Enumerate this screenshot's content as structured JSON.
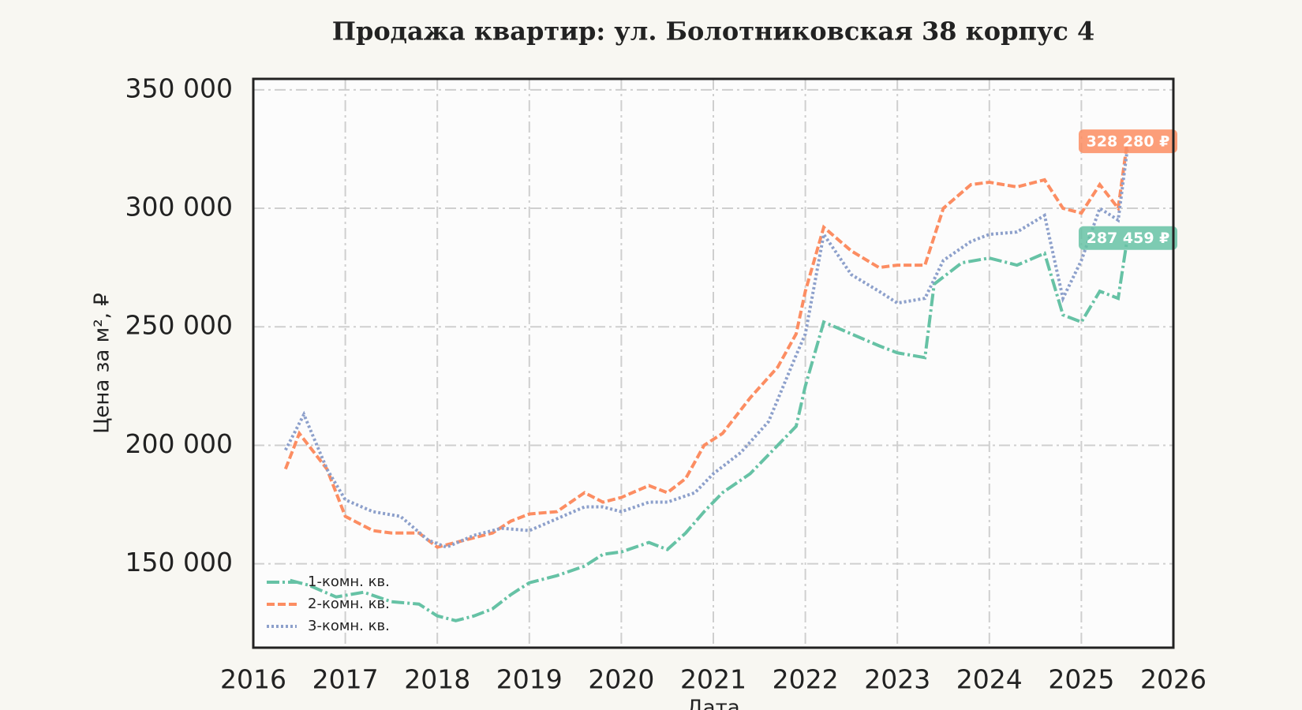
{
  "chart_data": {
    "type": "line",
    "title": "Продажа квартир: ул. Болотниковская 38 корпус 4",
    "x_label": "Дата",
    "y_label": "Цена за м², ₽",
    "xlim": [
      2016,
      2026
    ],
    "xticks": [
      2016,
      2017,
      2018,
      2019,
      2020,
      2021,
      2022,
      2023,
      2024,
      2025,
      2026
    ],
    "ylim": [
      114600,
      354600
    ],
    "yticks": [
      {
        "value": 150000,
        "label": "150 000"
      },
      {
        "value": 200000,
        "label": "200 000"
      },
      {
        "value": 250000,
        "label": "250 000"
      },
      {
        "value": 300000,
        "label": "300 000"
      },
      {
        "value": 350000,
        "label": "350 000"
      }
    ],
    "grid": true,
    "legend": "lower left",
    "series": [
      {
        "name": "1-комн. кв.",
        "color": "#66c2a5",
        "dash": "dashdot",
        "x": [
          2016.4,
          2016.6,
          2016.9,
          2017.2,
          2017.5,
          2017.8,
          2018.0,
          2018.2,
          2018.4,
          2018.6,
          2018.8,
          2019.0,
          2019.3,
          2019.6,
          2019.8,
          2020.0,
          2020.3,
          2020.5,
          2020.7,
          2020.9,
          2021.1,
          2021.4,
          2021.7,
          2021.9,
          2022.0,
          2022.2,
          2022.5,
          2022.8,
          2023.0,
          2023.3,
          2023.4,
          2023.7,
          2024.0,
          2024.3,
          2024.6,
          2024.8,
          2025.0,
          2025.2,
          2025.4,
          2025.5
        ],
        "values": [
          143000,
          141000,
          136000,
          138000,
          134000,
          133000,
          128000,
          126000,
          128000,
          131000,
          137000,
          142000,
          145000,
          149000,
          154000,
          155000,
          159000,
          156000,
          163000,
          172000,
          180000,
          188000,
          200000,
          208000,
          225000,
          252000,
          247000,
          242000,
          239000,
          237000,
          268000,
          277000,
          279000,
          276000,
          281000,
          255000,
          252000,
          265000,
          262000,
          287459
        ]
      },
      {
        "name": "2-комн. кв.",
        "color": "#fc8d62",
        "dash": "dashed",
        "x": [
          2016.35,
          2016.5,
          2016.6,
          2016.8,
          2017.0,
          2017.3,
          2017.5,
          2017.8,
          2018.0,
          2018.3,
          2018.6,
          2018.8,
          2019.0,
          2019.3,
          2019.6,
          2019.8,
          2020.0,
          2020.3,
          2020.5,
          2020.7,
          2020.9,
          2021.1,
          2021.4,
          2021.7,
          2021.9,
          2022.0,
          2022.2,
          2022.5,
          2022.8,
          2023.0,
          2023.3,
          2023.5,
          2023.8,
          2024.0,
          2024.3,
          2024.6,
          2024.8,
          2025.0,
          2025.2,
          2025.4,
          2025.5
        ],
        "values": [
          190000,
          205000,
          200000,
          190000,
          170000,
          164000,
          163000,
          163000,
          157000,
          160000,
          163000,
          168000,
          171000,
          172000,
          180000,
          176000,
          178000,
          183000,
          180000,
          186000,
          200000,
          205000,
          220000,
          233000,
          247000,
          265000,
          292000,
          282000,
          275000,
          276000,
          276000,
          300000,
          310000,
          311000,
          309000,
          312000,
          300000,
          298000,
          310000,
          300000,
          328280
        ]
      },
      {
        "name": "3-комн. кв.",
        "color": "#8da0cb",
        "dash": "dotted",
        "x": [
          2016.35,
          2016.55,
          2016.8,
          2017.0,
          2017.3,
          2017.6,
          2017.9,
          2018.1,
          2018.4,
          2018.7,
          2019.0,
          2019.3,
          2019.6,
          2019.8,
          2020.0,
          2020.3,
          2020.5,
          2020.8,
          2021.0,
          2021.3,
          2021.6,
          2021.9,
          2022.0,
          2022.2,
          2022.5,
          2022.8,
          2023.0,
          2023.3,
          2023.5,
          2023.8,
          2024.0,
          2024.3,
          2024.6,
          2024.8,
          2025.0,
          2025.2,
          2025.4,
          2025.5
        ],
        "values": [
          198000,
          213000,
          190000,
          177000,
          172000,
          170000,
          160000,
          157000,
          162000,
          165000,
          164000,
          169000,
          174000,
          174000,
          172000,
          176000,
          176000,
          180000,
          188000,
          197000,
          210000,
          238000,
          247000,
          289000,
          272000,
          265000,
          260000,
          262000,
          278000,
          286000,
          289000,
          290000,
          297000,
          262000,
          278000,
          300000,
          295000,
          325000
        ]
      }
    ],
    "annotations": [
      {
        "text": "328 280 ₽",
        "value": 328280,
        "color": "#fc8d62"
      },
      {
        "text": "287 459 ₽",
        "value": 287459,
        "color": "#66c2a5"
      }
    ]
  }
}
